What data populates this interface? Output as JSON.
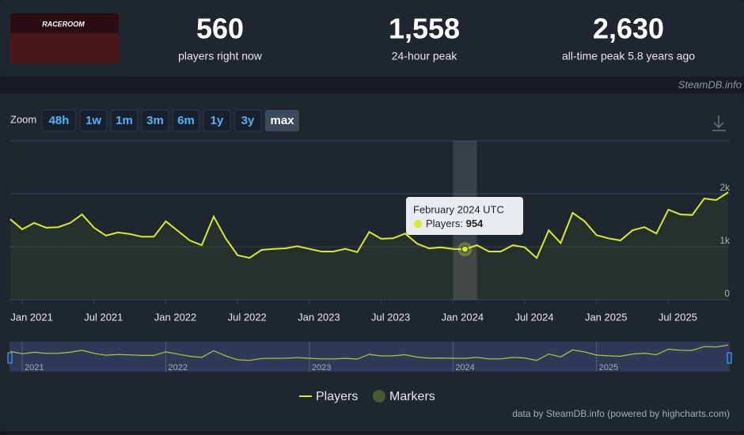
{
  "header": {
    "logo_text": "RACEROOM",
    "stats": [
      {
        "value": "560",
        "label": "players right now"
      },
      {
        "value": "1,558",
        "label": "24-hour peak"
      },
      {
        "value": "2,630",
        "label": "all-time peak 5.8 years ago"
      }
    ],
    "source": "SteamDB.info"
  },
  "zoom": {
    "label": "Zoom",
    "buttons": [
      "48h",
      "1w",
      "1m",
      "3m",
      "6m",
      "1y",
      "3y",
      "max"
    ],
    "active": "max"
  },
  "credits": "data by SteamDB.info (powered by highcharts.com)",
  "chart_data": {
    "type": "line",
    "x": [
      "2020-12",
      "2021-01",
      "2021-02",
      "2021-03",
      "2021-04",
      "2021-05",
      "2021-06",
      "2021-07",
      "2021-08",
      "2021-09",
      "2021-10",
      "2021-11",
      "2021-12",
      "2022-01",
      "2022-02",
      "2022-03",
      "2022-04",
      "2022-05",
      "2022-06",
      "2022-07",
      "2022-08",
      "2022-09",
      "2022-10",
      "2022-11",
      "2022-12",
      "2023-01",
      "2023-02",
      "2023-03",
      "2023-04",
      "2023-05",
      "2023-06",
      "2023-07",
      "2023-08",
      "2023-09",
      "2023-10",
      "2023-11",
      "2023-12",
      "2024-01",
      "2024-02",
      "2024-03",
      "2024-04",
      "2024-05",
      "2024-06",
      "2024-07",
      "2024-08",
      "2024-09",
      "2024-10",
      "2024-11",
      "2024-12",
      "2025-01",
      "2025-02",
      "2025-03",
      "2025-04",
      "2025-05",
      "2025-06",
      "2025-07",
      "2025-08",
      "2025-09",
      "2025-10",
      "2025-11",
      "2025-12"
    ],
    "series": [
      {
        "name": "Players",
        "color": "#d3ef2c",
        "values": [
          1520,
          1330,
          1450,
          1360,
          1370,
          1450,
          1610,
          1360,
          1210,
          1270,
          1240,
          1190,
          1190,
          1480,
          1300,
          1120,
          1030,
          1570,
          1160,
          840,
          790,
          940,
          960,
          970,
          1010,
          960,
          910,
          910,
          960,
          900,
          1280,
          1150,
          1160,
          1250,
          1060,
          970,
          990,
          960,
          954,
          1030,
          910,
          910,
          1030,
          990,
          790,
          1310,
          1070,
          1640,
          1480,
          1220,
          1160,
          1120,
          1310,
          1370,
          1250,
          1700,
          1610,
          1600,
          1910,
          1880,
          2030
        ]
      }
    ],
    "legend": [
      {
        "name": "Players",
        "color": "#d3ef2c"
      },
      {
        "name": "Markers",
        "color": "#4a5a2e"
      }
    ],
    "tooltip": {
      "title": "February 2024 UTC",
      "index": 38
    },
    "xlim": [
      "2020-12",
      "2025-12"
    ],
    "xticks": [
      {
        "value": "2021-01",
        "label": "Jan 2021"
      },
      {
        "value": "2021-07",
        "label": "Jul 2021"
      },
      {
        "value": "2022-01",
        "label": "Jan 2022"
      },
      {
        "value": "2022-07",
        "label": "Jul 2022"
      },
      {
        "value": "2023-01",
        "label": "Jan 2023"
      },
      {
        "value": "2023-07",
        "label": "Jul 2023"
      },
      {
        "value": "2024-01",
        "label": "Jan 2024"
      },
      {
        "value": "2024-07",
        "label": "Jul 2024"
      },
      {
        "value": "2025-01",
        "label": "Jan 2025"
      },
      {
        "value": "2025-07",
        "label": "Jul 2025"
      }
    ],
    "navigator_ticks": [
      {
        "value": "2021-01",
        "label": "2021"
      },
      {
        "value": "2022-01",
        "label": "2022"
      },
      {
        "value": "2023-01",
        "label": "2023"
      },
      {
        "value": "2024-01",
        "label": "2024"
      },
      {
        "value": "2025-01",
        "label": "2025"
      }
    ],
    "ylim": [
      0,
      3000
    ],
    "yticks": [
      0,
      {
        "value": 1000,
        "label": "1k"
      },
      {
        "value": 2000,
        "label": "2k"
      }
    ],
    "grid": true
  }
}
